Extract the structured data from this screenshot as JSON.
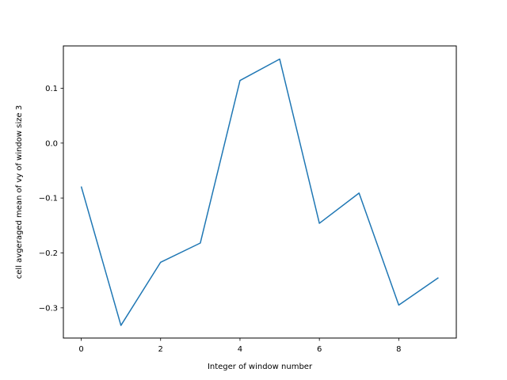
{
  "chart_data": {
    "type": "line",
    "xlabel": "Integer of window number",
    "ylabel": "cell avgeraged mean of vy of window size 3",
    "xlim": [
      -0.45,
      9.45
    ],
    "ylim": [
      -0.355,
      0.177
    ],
    "x_ticks": [
      0,
      2,
      4,
      6,
      8
    ],
    "x_tick_labels": [
      "0",
      "2",
      "4",
      "6",
      "8"
    ],
    "y_ticks": [
      -0.3,
      -0.2,
      -0.1,
      0.0,
      0.1
    ],
    "y_tick_labels": [
      "−0.3",
      "−0.2",
      "−0.1",
      "0.0",
      "0.1"
    ],
    "grid": false,
    "series": [
      {
        "color": "#1f77b4",
        "x": [
          0,
          1,
          2,
          3,
          4,
          5,
          6,
          7,
          8,
          9
        ],
        "y": [
          -0.079,
          -0.332,
          -0.217,
          -0.182,
          0.114,
          0.153,
          -0.146,
          -0.091,
          -0.295,
          -0.245
        ]
      }
    ]
  }
}
